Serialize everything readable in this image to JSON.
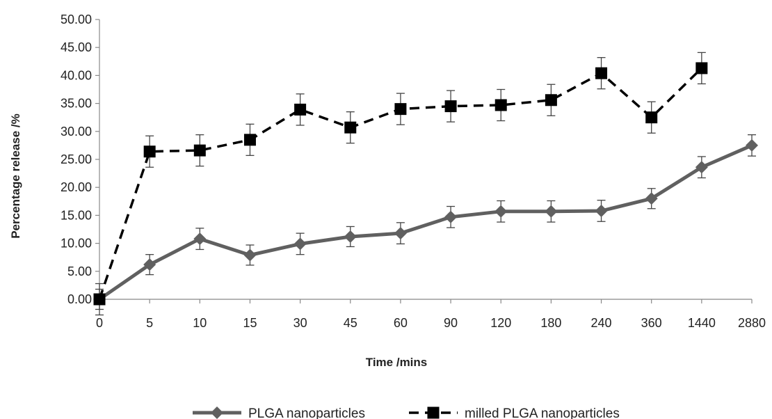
{
  "chart_data": {
    "type": "line",
    "categories": [
      "0",
      "5",
      "10",
      "15",
      "30",
      "45",
      "60",
      "90",
      "120",
      "180",
      "240",
      "360",
      "1440",
      "2880"
    ],
    "xlabel": "Time /mins",
    "ylabel": "Percentage release /%",
    "ylim": [
      0,
      50
    ],
    "y_ticks": [
      "0.00",
      "5.00",
      "10.00",
      "15.00",
      "20.00",
      "25.00",
      "30.00",
      "35.00",
      "40.00",
      "45.00",
      "50.00"
    ],
    "grid": false,
    "legend_position": "bottom",
    "series": [
      {
        "name": "PLGA nanoparticles",
        "color": "#606060",
        "marker": "diamond",
        "line_style": "solid",
        "values": [
          0.0,
          6.2,
          10.8,
          7.9,
          9.9,
          11.2,
          11.8,
          14.7,
          15.7,
          15.7,
          15.8,
          18.0,
          23.6,
          27.5
        ],
        "errors": [
          1.8,
          1.8,
          1.9,
          1.8,
          1.9,
          1.8,
          1.9,
          1.9,
          1.9,
          1.9,
          1.9,
          1.8,
          1.9,
          1.9
        ]
      },
      {
        "name": "milled PLGA nanoparticles",
        "color": "#000000",
        "marker": "square",
        "line_style": "dashed",
        "values": [
          0.0,
          26.4,
          26.6,
          28.5,
          33.9,
          30.7,
          34.0,
          34.5,
          34.7,
          35.6,
          40.4,
          32.5,
          41.3,
          null
        ],
        "errors": [
          2.8,
          2.8,
          2.8,
          2.8,
          2.8,
          2.8,
          2.8,
          2.8,
          2.8,
          2.8,
          2.8,
          2.8,
          2.8,
          null
        ]
      }
    ]
  }
}
